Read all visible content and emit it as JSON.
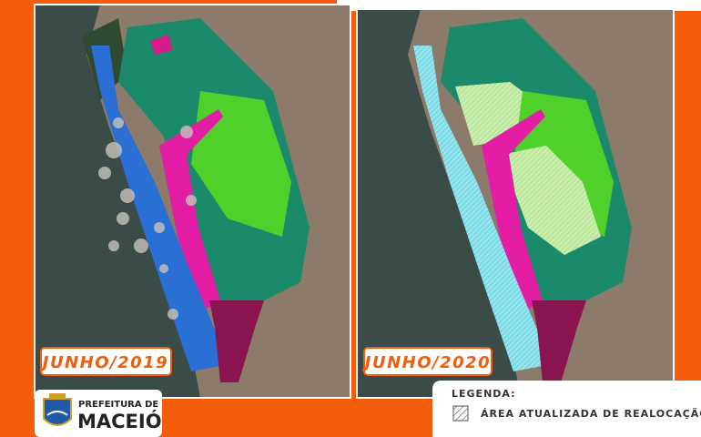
{
  "panels": [
    {
      "label": "JUNHO/2019"
    },
    {
      "label": "JUNHO/2020"
    }
  ],
  "logo": {
    "line1": "PREFEITURA DE",
    "line2": "MACEIÓ"
  },
  "legend": {
    "title": "LEGENDA:",
    "item": "ÁREA ATUALIZADA DE REALOCAÇÃO"
  }
}
